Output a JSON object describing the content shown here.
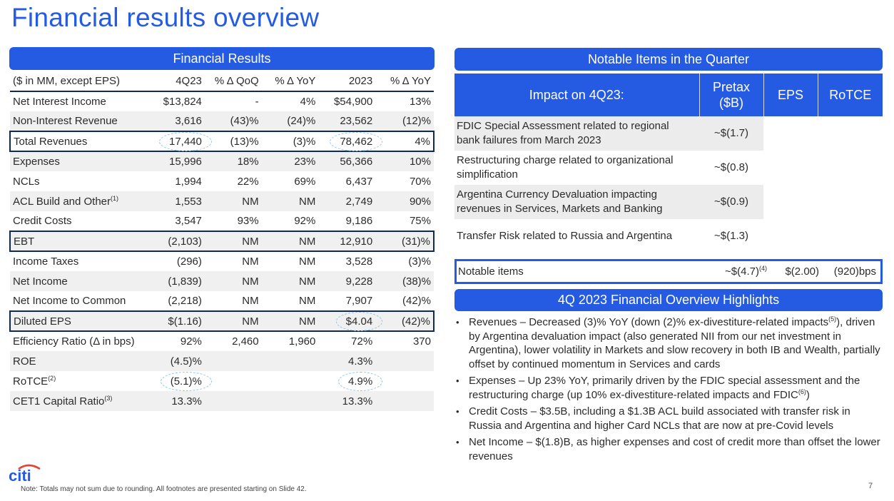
{
  "page": {
    "title": "Financial results overview",
    "page_number": "7",
    "footnote": "Note:  Totals may not sum due to rounding. All footnotes are presented starting on Slide 42.",
    "brand": {
      "name": "citi",
      "primary_color": "#255be3",
      "arc_color": "#e8432f",
      "dark_navy": "#0e2a5c"
    }
  },
  "financial_results": {
    "title": "Financial Results",
    "columns": [
      "($ in MM, except EPS)",
      "4Q23",
      "% Δ QoQ",
      "% Δ YoY",
      "2023",
      "% Δ YoY"
    ],
    "rows": [
      {
        "label": "Net Interest Income",
        "sup": "",
        "q": "$13,824",
        "qoq": "-",
        "yoy": "4%",
        "fy": "$54,900",
        "fy_yoy": "13%"
      },
      {
        "label": "Non-Interest Revenue",
        "sup": "",
        "q": "3,616",
        "qoq": "(43)%",
        "yoy": "(24)%",
        "fy": "23,562",
        "fy_yoy": "(12)%"
      },
      {
        "label": "Total Revenues",
        "sup": "",
        "q": "17,440",
        "qoq": "(13)%",
        "yoy": "(3)%",
        "fy": "78,462",
        "fy_yoy": "4%"
      },
      {
        "label": "Expenses",
        "sup": "",
        "q": "15,996",
        "qoq": "18%",
        "yoy": "23%",
        "fy": "56,366",
        "fy_yoy": "10%"
      },
      {
        "label": "NCLs",
        "sup": "",
        "q": "1,994",
        "qoq": "22%",
        "yoy": "69%",
        "fy": "6,437",
        "fy_yoy": "70%"
      },
      {
        "label": "ACL Build and Other",
        "sup": "(1)",
        "q": "1,553",
        "qoq": "NM",
        "yoy": "NM",
        "fy": "2,749",
        "fy_yoy": "90%"
      },
      {
        "label": "Credit Costs",
        "sup": "",
        "q": "3,547",
        "qoq": "93%",
        "yoy": "92%",
        "fy": "9,186",
        "fy_yoy": "75%"
      },
      {
        "label": "EBT",
        "sup": "",
        "q": "(2,103)",
        "qoq": "NM",
        "yoy": "NM",
        "fy": "12,910",
        "fy_yoy": "(31)%"
      },
      {
        "label": "Income Taxes",
        "sup": "",
        "q": "(296)",
        "qoq": "NM",
        "yoy": "NM",
        "fy": "3,528",
        "fy_yoy": "(3)%"
      },
      {
        "label": "Net Income",
        "sup": "",
        "q": "(1,839)",
        "qoq": "NM",
        "yoy": "NM",
        "fy": "9,228",
        "fy_yoy": "(38)%"
      },
      {
        "label": "Net Income to Common",
        "sup": "",
        "q": "(2,218)",
        "qoq": "NM",
        "yoy": "NM",
        "fy": "7,907",
        "fy_yoy": "(42)%"
      },
      {
        "label": "Diluted EPS",
        "sup": "",
        "q": "$(1.16)",
        "qoq": "NM",
        "yoy": "NM",
        "fy": "$4.04",
        "fy_yoy": "(42)%"
      },
      {
        "label": "Efficiency Ratio (Δ in bps)",
        "sup": "",
        "q": "92%",
        "qoq": "2,460",
        "yoy": "1,960",
        "fy": "72%",
        "fy_yoy": "370"
      },
      {
        "label": "ROE",
        "sup": "",
        "q": "(4.5)%",
        "qoq": "",
        "yoy": "",
        "fy": "4.3%",
        "fy_yoy": ""
      },
      {
        "label": "RoTCE",
        "sup": "(2)",
        "q": "(5.1)%",
        "qoq": "",
        "yoy": "",
        "fy": "4.9%",
        "fy_yoy": ""
      },
      {
        "label": "CET1 Capital Ratio",
        "sup": "(3)",
        "q": "13.3%",
        "qoq": "",
        "yoy": "",
        "fy": "13.3%",
        "fy_yoy": ""
      }
    ]
  },
  "notable_items": {
    "title": "Notable Items in the Quarter",
    "columns": [
      "Impact on 4Q23:",
      "Pretax ($B)",
      "EPS",
      "RoTCE"
    ],
    "pretax_header_line1": "Pretax",
    "pretax_header_line2": "($B)",
    "items": [
      {
        "desc_line1": "FDIC Special Assessment related to regional",
        "desc_line2": "bank failures from March 2023",
        "pretax": "~$(1.7)"
      },
      {
        "desc_line1": "Restructuring charge related to organizational",
        "desc_line2": "simplification",
        "pretax": "~$(0.8)"
      },
      {
        "desc_line1": "Argentina Currency Devaluation impacting",
        "desc_line2": "revenues in Services, Markets and Banking",
        "pretax": "~$(0.9)"
      },
      {
        "desc_line1": "Transfer Risk related to Russia and Argentina",
        "desc_line2": "",
        "pretax": "~$(1.3)"
      }
    ],
    "total": {
      "label": "Notable items",
      "pretax": "~$(4.7)",
      "pretax_sup": "(4)",
      "eps": "$(2.00)",
      "rotce": "(920)bps"
    }
  },
  "highlights": {
    "title": "4Q 2023 Financial Overview Highlights",
    "bullets": [
      {
        "head": "Revenues",
        "pre": " – Decreased (3)% YoY (down (2)% ex-divestiture-related impacts",
        "sup": "(5)",
        "post": "), driven by Argentina devaluation impact (also generated NII from our net investment in Argentina), lower volatility in Markets and slow recovery in both IB and Wealth, partially offset by continued momentum in Services and cards"
      },
      {
        "head": "Expenses",
        "pre": " – Up 23% YoY, primarily driven by the FDIC special assessment and the restructuring charge (up 10% ex-divestiture-related impacts and FDIC",
        "sup": "(6)",
        "post": ")"
      },
      {
        "head": "Credit Costs",
        "pre": " – $3.5B, including a $1.3B ACL build associated with transfer risk in Russia and Argentina and higher Card NCLs that are now at pre-Covid levels",
        "sup": "",
        "post": ""
      },
      {
        "head": "Net Income",
        "pre": " – $(1.8)B, as higher expenses and cost of credit more than offset the lower revenues",
        "sup": "",
        "post": ""
      }
    ]
  }
}
